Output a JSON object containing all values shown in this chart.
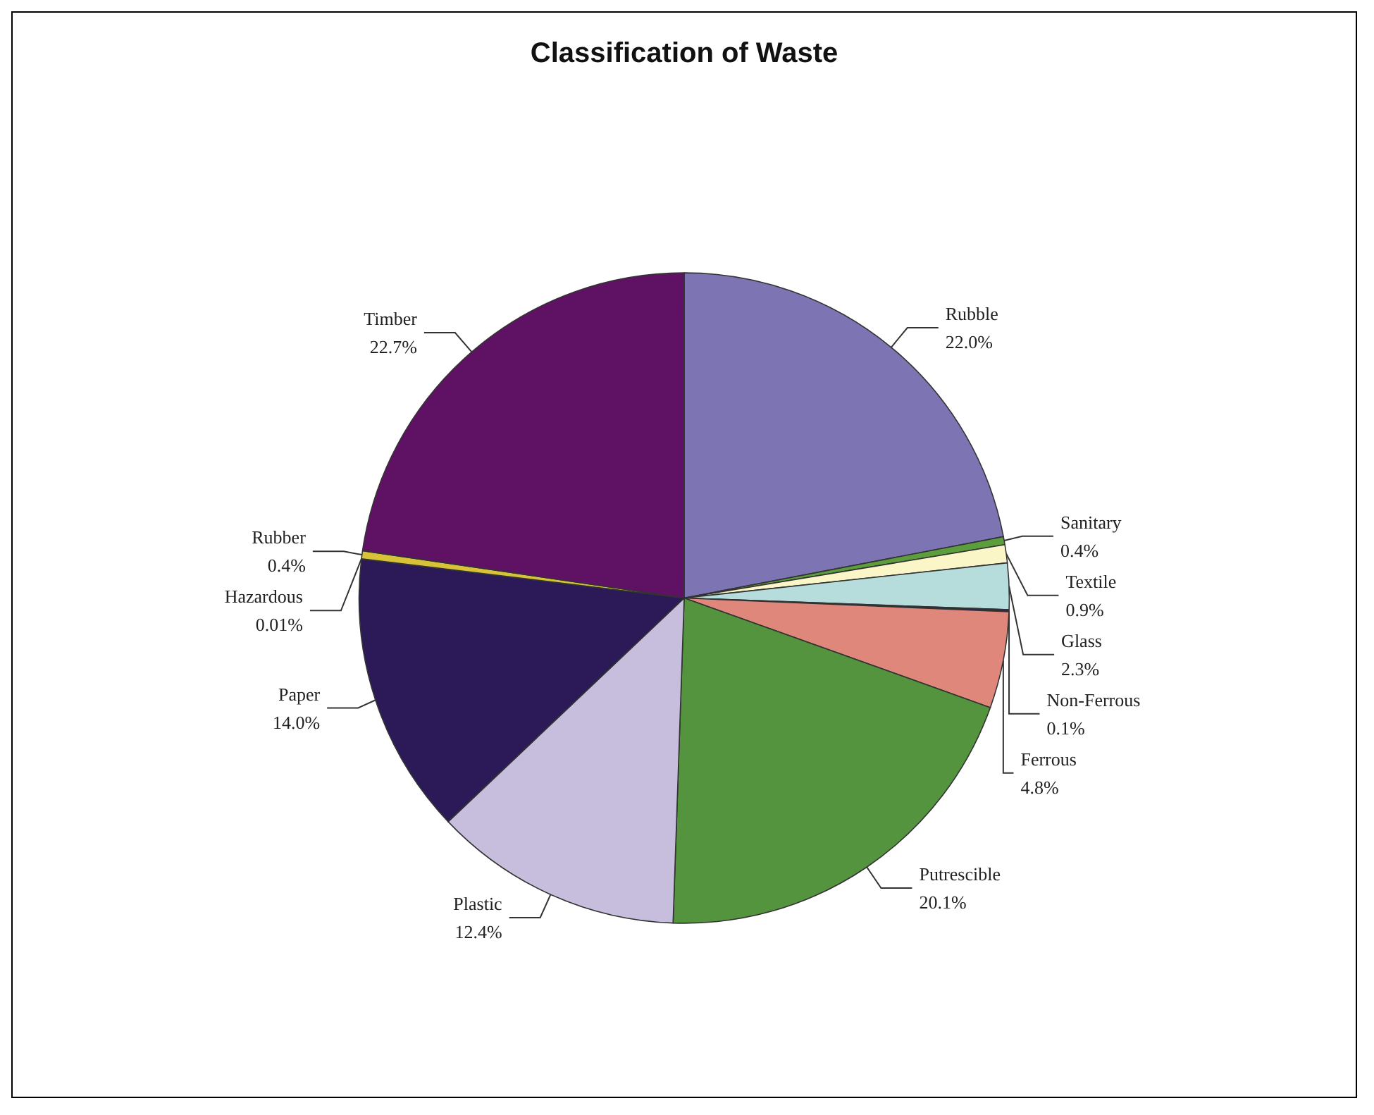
{
  "chart_data": {
    "type": "pie",
    "title": "Classification of Waste",
    "categories": [
      "Rubble",
      "Sanitary",
      "Textile",
      "Glass",
      "Non-Ferrous",
      "Ferrous",
      "Putrescible",
      "Plastic",
      "Paper",
      "Hazardous",
      "Rubber",
      "Timber"
    ],
    "values": [
      22.0,
      0.4,
      0.9,
      2.3,
      0.1,
      4.8,
      20.1,
      12.4,
      14.0,
      0.01,
      0.4,
      22.7
    ],
    "value_labels": [
      "22.0%",
      "0.4%",
      "0.9%",
      "2.3%",
      "0.1%",
      "4.8%",
      "20.1%",
      "12.4%",
      "14.0%",
      "0.01%",
      "0.4%",
      "22.7%"
    ],
    "colors": [
      "#7d74b3",
      "#5c9e3e",
      "#fbf6c8",
      "#b6dcdb",
      "#2e2450",
      "#e0877c",
      "#55943f",
      "#c7bedd",
      "#2b1a57",
      "#e8d84a",
      "#d8c23a",
      "#5f1263"
    ],
    "legend": false
  }
}
